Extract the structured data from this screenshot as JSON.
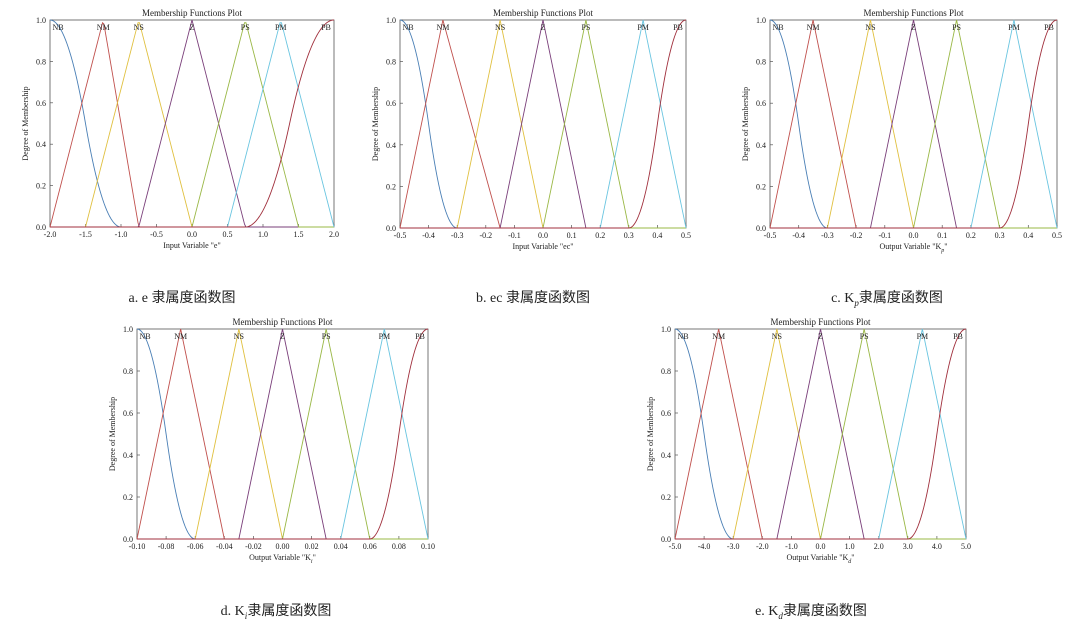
{
  "chart_data": [
    {
      "type": "line",
      "title": "Membership Functions Plot",
      "xlabel": "Input Variable \"e\"",
      "ylabel": "Degree of Membership",
      "xlim": [
        -2,
        2
      ],
      "ylim": [
        0,
        1
      ],
      "xticks": [
        "-2.0",
        "-1.5",
        "-1.0",
        "-0.5",
        "0.0",
        "0.5",
        "1.0",
        "1.5",
        "2.0"
      ],
      "yticks": [
        "0.0",
        "0.2",
        "0.4",
        "0.6",
        "0.8",
        "1.0"
      ],
      "caption_prefix": "a. e",
      "caption_sub": "",
      "caption_suffix": "隶属度函数图",
      "series": [
        {
          "name": "NB",
          "shape": "zmf",
          "params": [
            -2.0,
            -1.0
          ],
          "color": "#4a7fb5"
        },
        {
          "name": "NM",
          "shape": "trimf",
          "params": [
            -2.0,
            -1.25,
            -0.75
          ],
          "color": "#c0504d"
        },
        {
          "name": "NS",
          "shape": "trimf",
          "params": [
            -1.5,
            -0.75,
            0.0
          ],
          "color": "#e0c040"
        },
        {
          "name": "Z",
          "shape": "trimf",
          "params": [
            -0.75,
            0.0,
            0.75
          ],
          "color": "#7a3f7a"
        },
        {
          "name": "PS",
          "shape": "trimf",
          "params": [
            0.0,
            0.75,
            1.5
          ],
          "color": "#9ab846"
        },
        {
          "name": "PM",
          "shape": "trimf",
          "params": [
            0.5,
            1.25,
            2.0
          ],
          "color": "#6ac5e0"
        },
        {
          "name": "PB",
          "shape": "smf",
          "params": [
            0.75,
            2.0
          ],
          "color": "#a02f3c"
        }
      ]
    },
    {
      "type": "line",
      "title": "Membership Functions Plot",
      "xlabel": "Input Variable \"ec\"",
      "ylabel": "Degree of Membership",
      "xlim": [
        -0.5,
        0.5
      ],
      "ylim": [
        0,
        1
      ],
      "xticks": [
        "-0.5",
        "-0.4",
        "-0.3",
        "-0.2",
        "-0.1",
        "0.0",
        "0.1",
        "0.2",
        "0.3",
        "0.4",
        "0.5"
      ],
      "yticks": [
        "0.0",
        "0.2",
        "0.4",
        "0.6",
        "0.8",
        "1.0"
      ],
      "caption_prefix": "b. ec",
      "caption_sub": "",
      "caption_suffix": "隶属度函数图",
      "series": [
        {
          "name": "NB",
          "shape": "zmf",
          "params": [
            -0.5,
            -0.3
          ],
          "color": "#4a7fb5"
        },
        {
          "name": "NM",
          "shape": "trimf",
          "params": [
            -0.5,
            -0.35,
            -0.15
          ],
          "color": "#c0504d"
        },
        {
          "name": "NS",
          "shape": "trimf",
          "params": [
            -0.3,
            -0.15,
            0.0
          ],
          "color": "#e0c040"
        },
        {
          "name": "Z",
          "shape": "trimf",
          "params": [
            -0.15,
            0.0,
            0.15
          ],
          "color": "#7a3f7a"
        },
        {
          "name": "PS",
          "shape": "trimf",
          "params": [
            0.0,
            0.15,
            0.3
          ],
          "color": "#9ab846"
        },
        {
          "name": "PM",
          "shape": "trimf",
          "params": [
            0.2,
            0.35,
            0.5
          ],
          "color": "#6ac5e0"
        },
        {
          "name": "PB",
          "shape": "smf",
          "params": [
            0.3,
            0.5
          ],
          "color": "#a02f3c"
        }
      ]
    },
    {
      "type": "line",
      "title": "Membership Functions Plot",
      "xlabel": "Output Variable \"K",
      "xlabel_sub": "p",
      "xlabel_end": "\"",
      "ylabel": "Degree of Membership",
      "xlim": [
        -0.5,
        0.5
      ],
      "ylim": [
        0,
        1
      ],
      "xticks": [
        "-0.5",
        "-0.4",
        "-0.3",
        "-0.2",
        "-0.1",
        "0.0",
        "0.1",
        "0.2",
        "0.3",
        "0.4",
        "0.5"
      ],
      "yticks": [
        "0.0",
        "0.2",
        "0.4",
        "0.6",
        "0.8",
        "1.0"
      ],
      "caption_prefix": "c. K",
      "caption_sub": "p",
      "caption_suffix": "隶属度函数图",
      "series": [
        {
          "name": "NB",
          "shape": "zmf",
          "params": [
            -0.5,
            -0.3
          ],
          "color": "#4a7fb5"
        },
        {
          "name": "NM",
          "shape": "trimf",
          "params": [
            -0.5,
            -0.35,
            -0.2
          ],
          "color": "#c0504d"
        },
        {
          "name": "NS",
          "shape": "trimf",
          "params": [
            -0.3,
            -0.15,
            0.0
          ],
          "color": "#e0c040"
        },
        {
          "name": "Z",
          "shape": "trimf",
          "params": [
            -0.15,
            0.0,
            0.15
          ],
          "color": "#7a3f7a"
        },
        {
          "name": "PS",
          "shape": "trimf",
          "params": [
            0.0,
            0.15,
            0.3
          ],
          "color": "#9ab846"
        },
        {
          "name": "PM",
          "shape": "trimf",
          "params": [
            0.2,
            0.35,
            0.5
          ],
          "color": "#6ac5e0"
        },
        {
          "name": "PB",
          "shape": "smf",
          "params": [
            0.3,
            0.5
          ],
          "color": "#a02f3c"
        }
      ]
    },
    {
      "type": "line",
      "title": "Membership Functions Plot",
      "xlabel": "Output Variable \"K",
      "xlabel_sub": "i",
      "xlabel_end": "\"",
      "ylabel": "Degree of Membership",
      "xlim": [
        -0.1,
        0.1
      ],
      "ylim": [
        0,
        1
      ],
      "xticks": [
        "-0.10",
        "-0.08",
        "-0.06",
        "-0.04",
        "-0.02",
        "0.00",
        "0.02",
        "0.04",
        "0.06",
        "0.08",
        "0.10"
      ],
      "yticks": [
        "0.0",
        "0.2",
        "0.4",
        "0.6",
        "0.8",
        "1.0"
      ],
      "caption_prefix": "d. K",
      "caption_sub": "i",
      "caption_suffix": "隶属度函数图",
      "series": [
        {
          "name": "NB",
          "shape": "zmf",
          "params": [
            -0.1,
            -0.06
          ],
          "color": "#4a7fb5"
        },
        {
          "name": "NM",
          "shape": "trimf",
          "params": [
            -0.1,
            -0.07,
            -0.04
          ],
          "color": "#c0504d"
        },
        {
          "name": "NS",
          "shape": "trimf",
          "params": [
            -0.06,
            -0.03,
            0.0
          ],
          "color": "#e0c040"
        },
        {
          "name": "Z",
          "shape": "trimf",
          "params": [
            -0.03,
            0.0,
            0.03
          ],
          "color": "#7a3f7a"
        },
        {
          "name": "PS",
          "shape": "trimf",
          "params": [
            0.0,
            0.03,
            0.06
          ],
          "color": "#9ab846"
        },
        {
          "name": "PM",
          "shape": "trimf",
          "params": [
            0.04,
            0.07,
            0.1
          ],
          "color": "#6ac5e0"
        },
        {
          "name": "PB",
          "shape": "smf",
          "params": [
            0.06,
            0.1
          ],
          "color": "#a02f3c"
        }
      ]
    },
    {
      "type": "line",
      "title": "Membership Functions Plot",
      "xlabel": "Output Variable \"K",
      "xlabel_sub": "d",
      "xlabel_end": "\"",
      "ylabel": "Degree of Membership",
      "xlim": [
        -5,
        5
      ],
      "ylim": [
        0,
        1
      ],
      "xticks": [
        "-5.0",
        "-4.0",
        "-3.0",
        "-2.0",
        "-1.0",
        "0.0",
        "1.0",
        "2.0",
        "3.0",
        "4.0",
        "5.0"
      ],
      "yticks": [
        "0.0",
        "0.2",
        "0.4",
        "0.6",
        "0.8",
        "1.0"
      ],
      "caption_prefix": "e. K",
      "caption_sub": "d",
      "caption_suffix": "隶属度函数图",
      "series": [
        {
          "name": "NB",
          "shape": "zmf",
          "params": [
            -5.0,
            -3.0
          ],
          "color": "#4a7fb5"
        },
        {
          "name": "NM",
          "shape": "trimf",
          "params": [
            -5.0,
            -3.5,
            -2.0
          ],
          "color": "#c0504d"
        },
        {
          "name": "NS",
          "shape": "trimf",
          "params": [
            -3.0,
            -1.5,
            0.0
          ],
          "color": "#e0c040"
        },
        {
          "name": "Z",
          "shape": "trimf",
          "params": [
            -1.5,
            0.0,
            1.5
          ],
          "color": "#7a3f7a"
        },
        {
          "name": "PS",
          "shape": "trimf",
          "params": [
            0.0,
            1.5,
            3.0
          ],
          "color": "#9ab846"
        },
        {
          "name": "PM",
          "shape": "trimf",
          "params": [
            2.0,
            3.5,
            5.0
          ],
          "color": "#6ac5e0"
        },
        {
          "name": "PB",
          "shape": "smf",
          "params": [
            3.0,
            5.0
          ],
          "color": "#a02f3c"
        }
      ]
    }
  ]
}
